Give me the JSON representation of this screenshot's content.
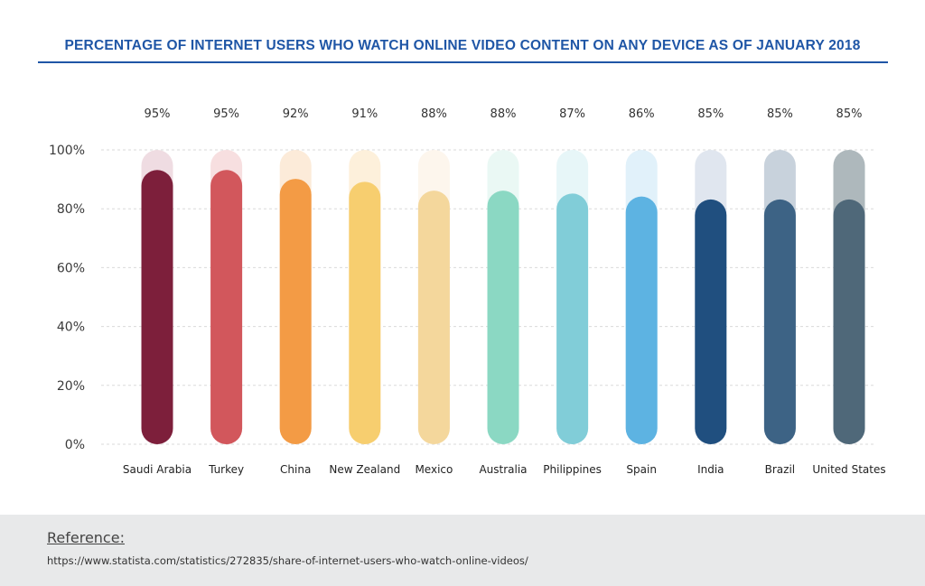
{
  "chart_data": {
    "type": "bar",
    "title": "PERCENTAGE OF INTERNET USERS WHO WATCH ONLINE VIDEO CONTENT ON ANY DEVICE AS OF JANUARY 2018",
    "xlabel": "",
    "ylabel": "",
    "ylim": [
      0,
      100
    ],
    "yticks": [
      "100%",
      "80%",
      "60%",
      "40%",
      "20%",
      "0%"
    ],
    "ytick_values": [
      100,
      80,
      60,
      40,
      20,
      0
    ],
    "categories": [
      "Saudi Arabia",
      "Turkey",
      "China",
      "New Zealand",
      "Mexico",
      "Australia",
      "Philippines",
      "Spain",
      "India",
      "Brazil",
      "United States"
    ],
    "values": [
      95,
      95,
      92,
      91,
      88,
      88,
      87,
      86,
      85,
      85,
      85
    ],
    "value_labels": [
      "95%",
      "95%",
      "92%",
      "91%",
      "88%",
      "88%",
      "87%",
      "86%",
      "85%",
      "85%",
      "85%"
    ],
    "colors": [
      "#7d1f3b",
      "#d2575c",
      "#f39b45",
      "#f7ce6f",
      "#f4d79c",
      "#8bd8c3",
      "#81cdd8",
      "#5db3e2",
      "#204f7f",
      "#3d6385",
      "#4f6879"
    ],
    "background_colors": [
      "#efdce2",
      "#f7dfe0",
      "#fcebd9",
      "#fdf0db",
      "#fdf6ed",
      "#eaf8f4",
      "#e7f6f8",
      "#e1f1fa",
      "#e0e6ef",
      "#c8d2dc",
      "#aeb8bc"
    ],
    "grid": true,
    "legend": "none"
  },
  "reference": {
    "heading": "Reference:",
    "url": "https://www.statista.com/statistics/272835/share-of-internet-users-who-watch-online-videos/"
  }
}
